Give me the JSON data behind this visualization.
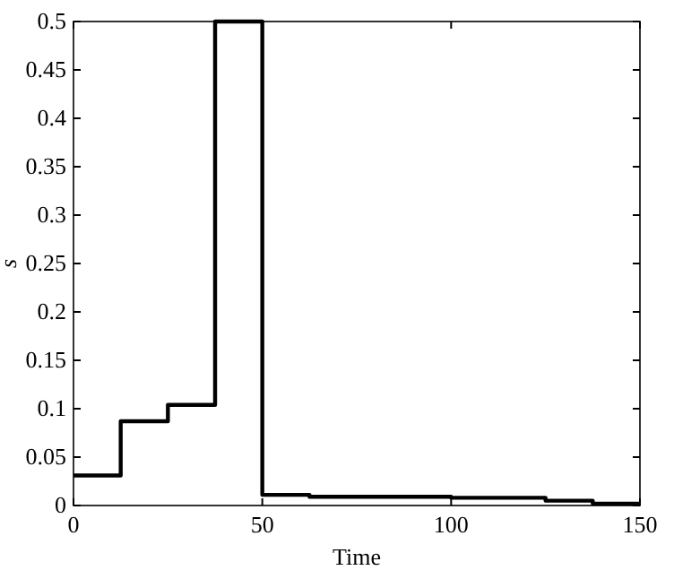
{
  "chart_data": {
    "type": "step",
    "xlabel": "Time",
    "ylabel": "s",
    "x": [
      0,
      12.5,
      25,
      37.5,
      50,
      62.5,
      75,
      87.5,
      100,
      112.5,
      125,
      137.5,
      150
    ],
    "series": [
      {
        "color": "#000000",
        "values": [
          0.031,
          0.087,
          0.104,
          0.5,
          0.011,
          0.009,
          0.009,
          0.009,
          0.008,
          0.008,
          0.005,
          0.002,
          0.002
        ]
      }
    ],
    "xlim": [
      0,
      150
    ],
    "xticks": [
      0,
      50,
      100,
      150
    ],
    "ylim": [
      0,
      0.5
    ],
    "yticks": [
      0,
      0.05,
      0.1,
      0.15,
      0.2,
      0.25,
      0.3,
      0.35,
      0.4,
      0.45,
      0.5
    ],
    "grid": false,
    "line_style": "solid"
  }
}
